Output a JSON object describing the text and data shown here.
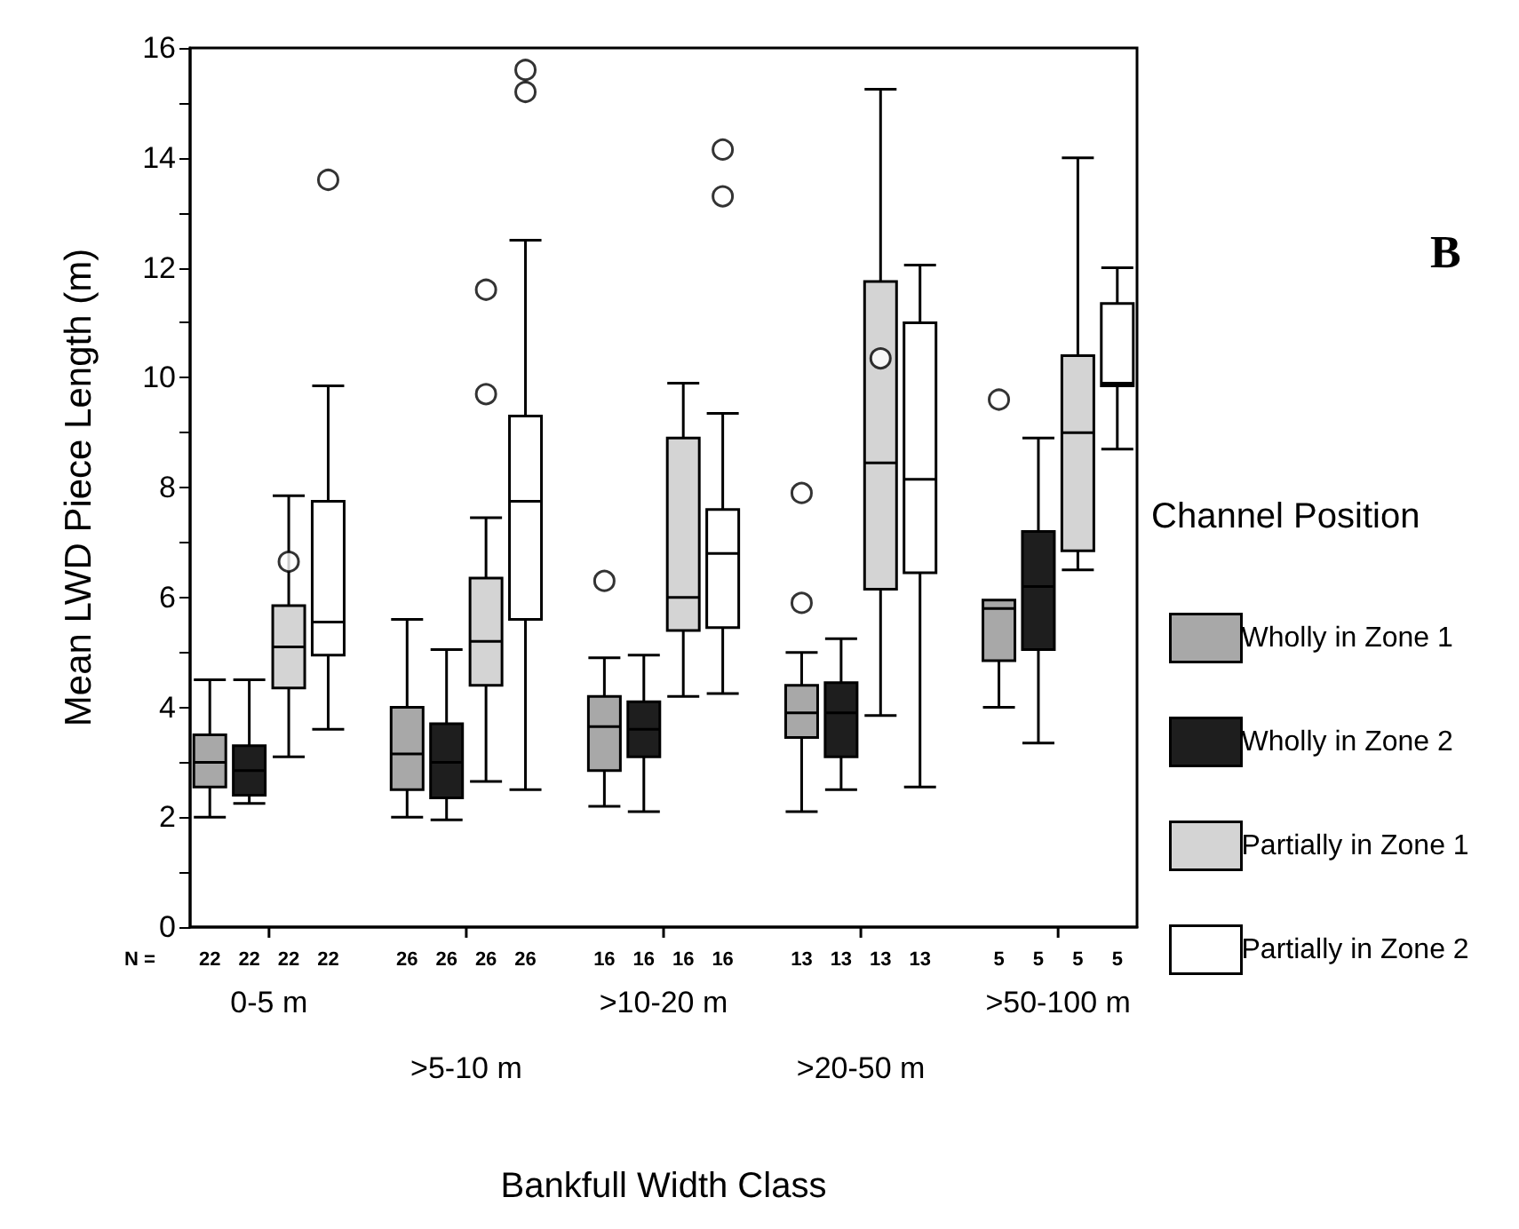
{
  "chart_data": {
    "type": "box",
    "title": "B",
    "xlabel": "Bankfull Width Class",
    "ylabel": "Mean LWD Piece Length (m)",
    "legend_title": "Channel Position",
    "legend": "right",
    "grid": false,
    "categories": [
      "0-5 m",
      ">5-10 m",
      ">10-20 m",
      ">20-50 m",
      ">50-100 m"
    ],
    "ylim": [
      0,
      16
    ],
    "yticks": [
      0,
      {
        "value": 1,
        "label": null
      },
      2,
      {
        "value": 3,
        "label": null
      },
      4,
      {
        "value": 5,
        "label": null
      },
      6,
      {
        "value": 7,
        "label": null
      },
      8,
      {
        "value": 9,
        "label": null
      },
      10,
      {
        "value": 11,
        "label": null
      },
      12,
      {
        "value": 13,
        "label": null
      },
      14,
      {
        "value": 15,
        "label": null
      },
      16
    ],
    "series": [
      {
        "name": "Wholly in Zone 1",
        "color": "#a8a8a8",
        "boxes": [
          {
            "low": 2.0,
            "q1": 2.55,
            "median": 3.0,
            "q3": 3.5,
            "high": 4.5
          },
          {
            "low": 2.0,
            "q1": 2.5,
            "median": 3.15,
            "q3": 4.0,
            "high": 5.6
          },
          {
            "low": 2.2,
            "q1": 2.85,
            "median": 3.65,
            "q3": 4.2,
            "high": 4.9,
            "outliers": [
              6.3
            ]
          },
          {
            "low": 2.1,
            "q1": 3.45,
            "median": 3.9,
            "q3": 4.4,
            "high": 5.0,
            "outliers": [
              5.9,
              7.9
            ]
          },
          {
            "low": 4.0,
            "q1": 4.85,
            "median": 5.8,
            "q3": 5.95,
            "high": 5.95,
            "outliers": [
              9.6
            ]
          }
        ]
      },
      {
        "name": "Wholly in Zone 2",
        "color": "#1e1e1e",
        "boxes": [
          {
            "low": 2.25,
            "q1": 2.4,
            "median": 2.85,
            "q3": 3.3,
            "high": 4.5
          },
          {
            "low": 1.95,
            "q1": 2.35,
            "median": 3.0,
            "q3": 3.7,
            "high": 5.05
          },
          {
            "low": 2.1,
            "q1": 3.1,
            "median": 3.6,
            "q3": 4.1,
            "high": 4.95
          },
          {
            "low": 2.5,
            "q1": 3.1,
            "median": 3.9,
            "q3": 4.45,
            "high": 5.25
          },
          {
            "low": 3.35,
            "q1": 5.05,
            "median": 6.2,
            "q3": 7.2,
            "high": 8.9
          }
        ]
      },
      {
        "name": "Partially in Zone 1",
        "color": "#d4d4d4",
        "boxes": [
          {
            "low": 3.1,
            "q1": 4.35,
            "median": 5.1,
            "q3": 5.85,
            "high": 7.85,
            "outliers": [
              6.65
            ]
          },
          {
            "low": 2.65,
            "q1": 4.4,
            "median": 5.2,
            "q3": 6.35,
            "high": 7.45,
            "outliers": [
              9.7,
              11.6
            ]
          },
          {
            "low": 4.2,
            "q1": 5.4,
            "median": 6.0,
            "q3": 8.9,
            "high": 9.9
          },
          {
            "low": 3.85,
            "q1": 6.15,
            "median": 8.45,
            "q3": 11.75,
            "high": 15.25,
            "outliers": [
              10.35
            ]
          },
          {
            "low": 6.5,
            "q1": 6.85,
            "median": 9.0,
            "q3": 10.4,
            "high": 14.0
          }
        ]
      },
      {
        "name": "Partially in Zone 2",
        "color": "#ffffff",
        "boxes": [
          {
            "low": 3.6,
            "q1": 4.95,
            "median": 5.55,
            "q3": 7.75,
            "high": 9.85,
            "outliers": [
              13.6
            ]
          },
          {
            "low": 2.5,
            "q1": 5.6,
            "median": 7.75,
            "q3": 9.3,
            "high": 12.5,
            "outliers": [
              15.2,
              15.6
            ]
          },
          {
            "low": 4.25,
            "q1": 5.45,
            "median": 6.8,
            "q3": 7.6,
            "high": 9.35,
            "outliers": [
              13.3,
              14.15
            ]
          },
          {
            "low": 2.55,
            "q1": 6.45,
            "median": 8.15,
            "q3": 11.0,
            "high": 12.05
          },
          {
            "low": 8.7,
            "q1": 9.85,
            "median": 9.9,
            "q3": 11.35,
            "high": 12.0
          }
        ]
      }
    ],
    "annotations": [
      "N =",
      "22",
      "22",
      "22",
      "22",
      "26",
      "26",
      "26",
      "26",
      "16",
      "16",
      "16",
      "16",
      "13",
      "13",
      "13",
      "13",
      "5",
      "5",
      "5",
      "5"
    ]
  }
}
